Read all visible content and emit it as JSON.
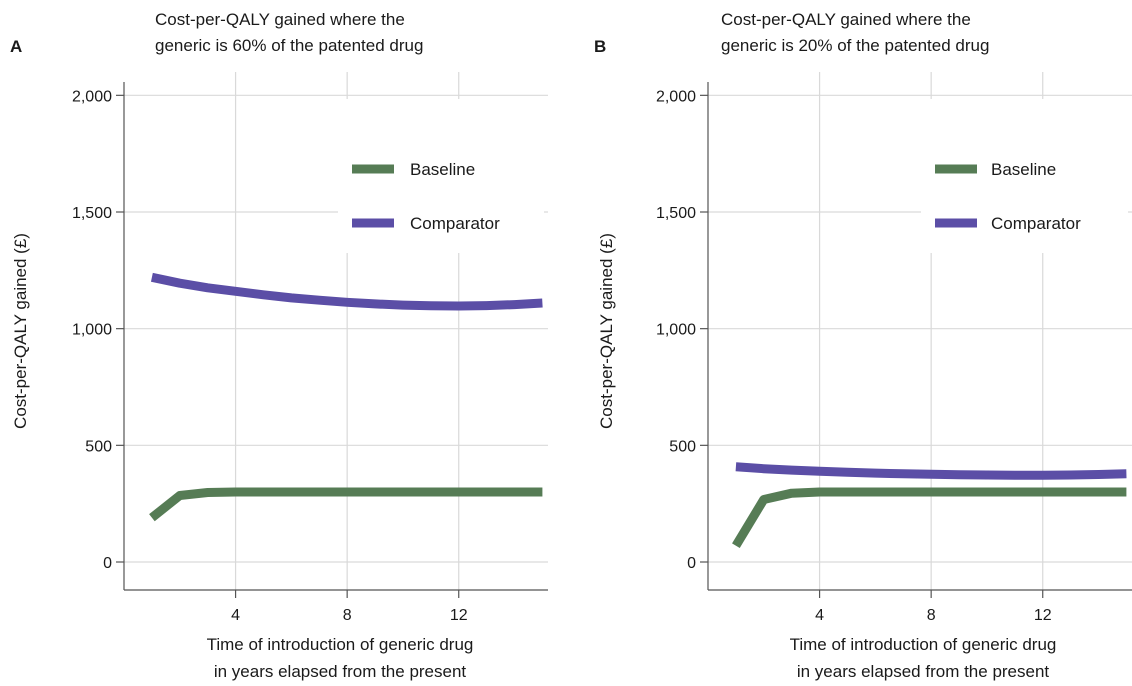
{
  "chart_data": [
    {
      "panel_label": "A",
      "type": "line",
      "title_lines": [
        "Cost-per-QALY gained where the",
        "generic is 60% of the patented drug"
      ],
      "xlabel_lines": [
        "Time of introduction of generic drug",
        "in years elapsed from the present"
      ],
      "ylabel": "Cost-per-QALY gained (£)",
      "xlim": [
        0,
        15.2
      ],
      "ylim": [
        -120,
        2100
      ],
      "xticks": [
        4,
        8,
        12
      ],
      "xtick_labels": [
        "4",
        "8",
        "12"
      ],
      "yticks": [
        0,
        500,
        1000,
        1500,
        2000
      ],
      "ytick_labels": [
        "0",
        "500",
        "1,000",
        "1,500",
        "2,000"
      ],
      "grid": true,
      "legend_position": "upper-right",
      "series": [
        {
          "name": "Baseline",
          "color": "#567c55",
          "x": [
            1,
            2,
            3,
            4,
            5,
            6,
            7,
            8,
            9,
            10,
            11,
            12,
            13,
            14,
            15
          ],
          "y": [
            190,
            285,
            298,
            300,
            300,
            300,
            300,
            300,
            300,
            300,
            300,
            300,
            300,
            300,
            300
          ]
        },
        {
          "name": "Comparator",
          "color": "#5b4ea6",
          "x": [
            1,
            2,
            3,
            4,
            5,
            6,
            7,
            8,
            9,
            10,
            11,
            12,
            13,
            14,
            15
          ],
          "y": [
            1220,
            1195,
            1175,
            1160,
            1145,
            1132,
            1122,
            1113,
            1106,
            1101,
            1098,
            1097,
            1099,
            1103,
            1110
          ]
        }
      ]
    },
    {
      "panel_label": "B",
      "type": "line",
      "title_lines": [
        "Cost-per-QALY gained where the",
        "generic is 20% of the patented drug"
      ],
      "xlabel_lines": [
        "Time of introduction of generic drug",
        "in years elapsed from the present"
      ],
      "ylabel": "Cost-per-QALY gained (£)",
      "xlim": [
        0,
        15.2
      ],
      "ylim": [
        -120,
        2100
      ],
      "xticks": [
        4,
        8,
        12
      ],
      "xtick_labels": [
        "4",
        "8",
        "12"
      ],
      "yticks": [
        0,
        500,
        1000,
        1500,
        2000
      ],
      "ytick_labels": [
        "0",
        "500",
        "1,000",
        "1,500",
        "2,000"
      ],
      "grid": true,
      "legend_position": "upper-right",
      "series": [
        {
          "name": "Baseline",
          "color": "#567c55",
          "x": [
            1,
            2,
            3,
            4,
            5,
            6,
            7,
            8,
            9,
            10,
            11,
            12,
            13,
            14,
            15
          ],
          "y": [
            70,
            268,
            295,
            300,
            300,
            300,
            300,
            300,
            300,
            300,
            300,
            300,
            300,
            300,
            300
          ]
        },
        {
          "name": "Comparator",
          "color": "#5b4ea6",
          "x": [
            1,
            2,
            3,
            4,
            5,
            6,
            7,
            8,
            9,
            10,
            11,
            12,
            13,
            14,
            15
          ],
          "y": [
            408,
            400,
            394,
            389,
            385,
            381,
            378,
            376,
            374,
            373,
            372,
            372,
            373,
            375,
            378
          ]
        }
      ]
    }
  ]
}
